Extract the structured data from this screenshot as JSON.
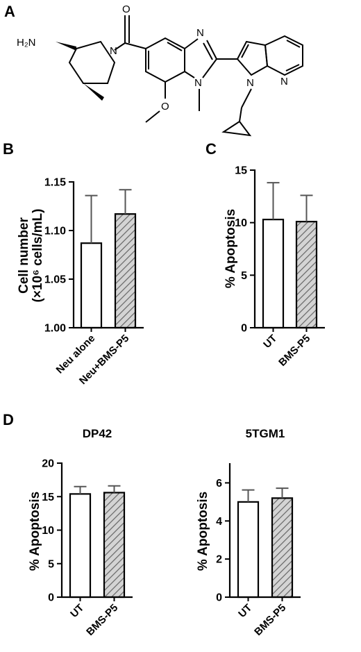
{
  "panels": {
    "a": "A",
    "b": "B",
    "c": "C",
    "d": "D"
  },
  "structure": {
    "atoms": {
      "h2n": "H₂N",
      "n_piperidine": "N",
      "o_carbonyl": "O",
      "n_imidazole_top": "N",
      "n_imidazole_bottom": "N",
      "o_methoxy": "O",
      "n_pyrrole": "N",
      "n_pyridine": "N"
    }
  },
  "colors": {
    "open_bar": "#ffffff",
    "hatched_bar_bg": "#d4d4d4",
    "hatch_line": "#666666",
    "axis": "#000000",
    "error_bar": "#555555"
  },
  "chart_data": [
    {
      "id": "chartB",
      "type": "bar",
      "panel": "B",
      "title": "",
      "ylabel_main": "Cell number",
      "ylabel_unit": "(×10⁶ cells/mL)",
      "categories": [
        "Neu alone",
        "Neu+BMS-P5"
      ],
      "values": [
        1.087,
        1.117
      ],
      "errors": [
        0.049,
        0.025
      ],
      "fills": [
        "open",
        "hatched"
      ],
      "ylim": [
        1.0,
        1.15
      ],
      "yticks": [
        1.0,
        1.05,
        1.1,
        1.15
      ],
      "ytick_labels": [
        "1.00",
        "1.05",
        "1.10",
        "1.15"
      ]
    },
    {
      "id": "chartC",
      "type": "bar",
      "panel": "C",
      "title": "",
      "ylabel_main": "% Apoptosis",
      "ylabel_unit": "",
      "categories": [
        "UT",
        "BMS-P5"
      ],
      "values": [
        10.3,
        10.1
      ],
      "errors": [
        3.5,
        2.5
      ],
      "fills": [
        "open",
        "hatched"
      ],
      "ylim": [
        0,
        15
      ],
      "yticks": [
        0,
        5,
        10,
        15
      ],
      "ytick_labels": [
        "0",
        "5",
        "10",
        "15"
      ]
    },
    {
      "id": "chartD1",
      "type": "bar",
      "panel": "D",
      "title": "DP42",
      "ylabel_main": "% Apoptosis",
      "ylabel_unit": "",
      "categories": [
        "UT",
        "BMS-P5"
      ],
      "values": [
        15.4,
        15.6
      ],
      "errors": [
        1.1,
        1.0
      ],
      "fills": [
        "open",
        "hatched"
      ],
      "ylim": [
        0,
        20
      ],
      "yticks": [
        0,
        5,
        10,
        15,
        20
      ],
      "ytick_labels": [
        "0",
        "5",
        "10",
        "15",
        "20"
      ]
    },
    {
      "id": "chartD2",
      "type": "bar",
      "panel": "D",
      "title": "5TGM1",
      "ylabel_main": "% Apoptosis",
      "ylabel_unit": "",
      "categories": [
        "UT",
        "BMS-P5"
      ],
      "values": [
        5.0,
        5.2
      ],
      "errors": [
        0.63,
        0.52
      ],
      "fills": [
        "open",
        "hatched"
      ],
      "ylim": [
        0,
        7
      ],
      "yticks": [
        0,
        2,
        4,
        6
      ],
      "ytick_labels": [
        "0",
        "2",
        "4",
        "6"
      ]
    }
  ]
}
